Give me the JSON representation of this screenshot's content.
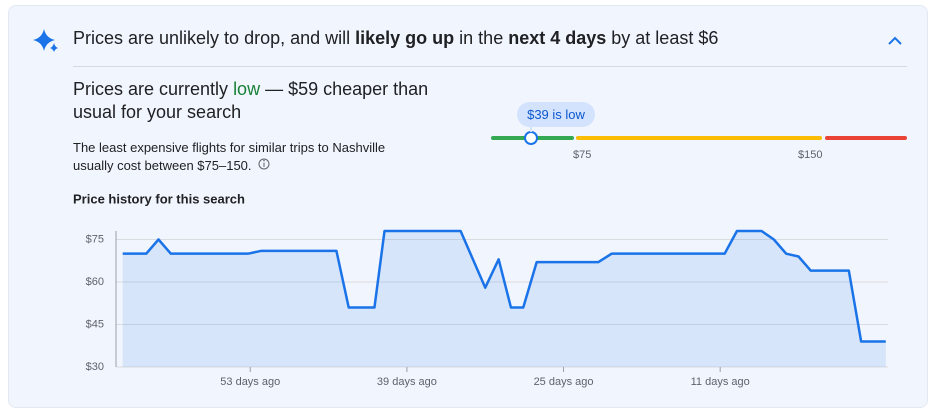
{
  "header": {
    "parts": [
      "Prices are unlikely to drop, and will ",
      "likely go up",
      " in the ",
      "next 4 days",
      " by at least $6"
    ]
  },
  "summary": {
    "parts": [
      "Prices are currently ",
      "low",
      " — $59 cheaper than usual for your search"
    ],
    "description": "The least expensive flights for similar trips to Nashville usually cost between $75–150."
  },
  "range": {
    "badge": "$39 is low",
    "labels": [
      "$75",
      "$150"
    ]
  },
  "chart_data": {
    "type": "line",
    "title": "Price history for this search",
    "x": [
      64.4,
      62.3,
      61.2,
      60.1,
      53.2,
      52.0,
      45.3,
      44.2,
      41.9,
      41.0,
      34.2,
      32.0,
      30.8,
      29.7,
      28.6,
      27.4,
      21.9,
      20.7,
      10.6,
      9.5,
      7.3,
      6.2,
      5.1,
      4.0,
      2.9,
      -0.5,
      -1.6,
      -3.8
    ],
    "series": [
      {
        "color": "#1a73e8",
        "values": [
          70,
          70,
          75,
          70,
          70,
          71,
          71,
          51,
          51,
          78,
          78,
          58,
          68,
          51,
          51,
          67,
          67,
          70,
          70,
          78,
          78,
          75,
          70,
          69,
          64,
          64,
          39,
          39
        ]
      }
    ],
    "xlim": [
      65,
      -4
    ],
    "ylim": [
      30,
      78
    ],
    "xticks": [
      {
        "value": 53,
        "label": "53 days ago"
      },
      {
        "value": 39,
        "label": "39 days ago"
      },
      {
        "value": 25,
        "label": "25 days ago"
      },
      {
        "value": 11,
        "label": "11 days ago"
      }
    ],
    "yticks": [
      {
        "value": 30,
        "label": "$30"
      },
      {
        "value": 45,
        "label": "$45"
      },
      {
        "value": 60,
        "label": "$60"
      },
      {
        "value": 75,
        "label": "$75"
      }
    ],
    "grid": true
  }
}
